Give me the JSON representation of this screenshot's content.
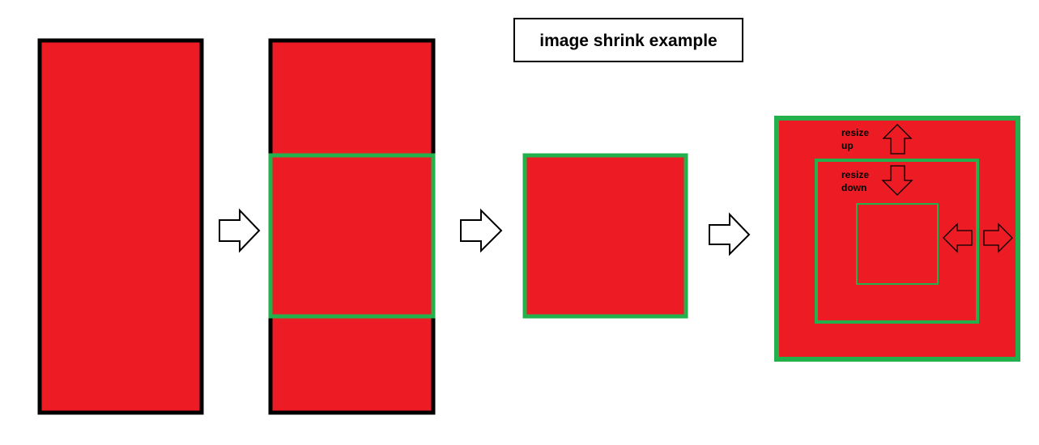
{
  "title": "image shrink example",
  "labels": {
    "resize_up_line1": "resize",
    "resize_up_line2": "up",
    "resize_down_line1": "resize",
    "resize_down_line2": "down"
  },
  "colors": {
    "fill": "#ed1c24",
    "crop_border": "#22b14c",
    "outline": "#000000",
    "background": "#ffffff"
  },
  "icons": {
    "step_arrow": "right-arrow-icon",
    "resize_up": "up-arrow-icon",
    "resize_down": "down-arrow-icon",
    "resize_left": "left-arrow-icon",
    "resize_right": "right-arrow-icon"
  }
}
